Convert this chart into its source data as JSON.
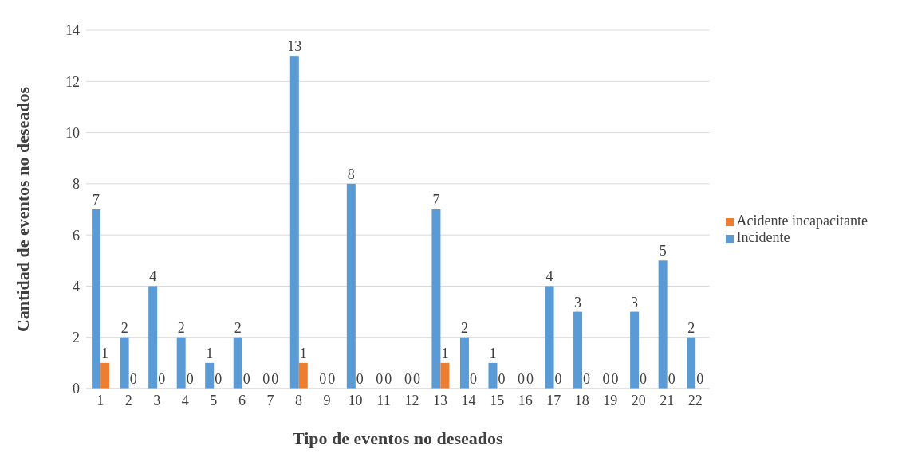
{
  "chart_data": {
    "type": "bar",
    "xlabel": "Tipo de eventos no deseados",
    "ylabel": "Cantidad de eventos no deseados",
    "categories": [
      "1",
      "2",
      "3",
      "4",
      "5",
      "6",
      "7",
      "8",
      "9",
      "10",
      "11",
      "12",
      "13",
      "14",
      "15",
      "16",
      "17",
      "18",
      "19",
      "20",
      "21",
      "22"
    ],
    "series": [
      {
        "name": "Incidente",
        "color": "#5b9bd5",
        "values": [
          7,
          2,
          4,
          2,
          1,
          2,
          0,
          13,
          0,
          8,
          0,
          0,
          7,
          2,
          1,
          0,
          4,
          3,
          0,
          3,
          5,
          2
        ]
      },
      {
        "name": "Acidente incapacitante",
        "color": "#ed7d31",
        "values": [
          1,
          0,
          0,
          0,
          0,
          0,
          0,
          1,
          0,
          0,
          0,
          0,
          1,
          0,
          0,
          0,
          0,
          0,
          0,
          0,
          0,
          0
        ]
      }
    ],
    "ylim": [
      0,
      14
    ],
    "yticks": [
      0,
      2,
      4,
      6,
      8,
      10,
      12,
      14
    ],
    "grid": "y",
    "legend": "right",
    "data_labels": true
  }
}
